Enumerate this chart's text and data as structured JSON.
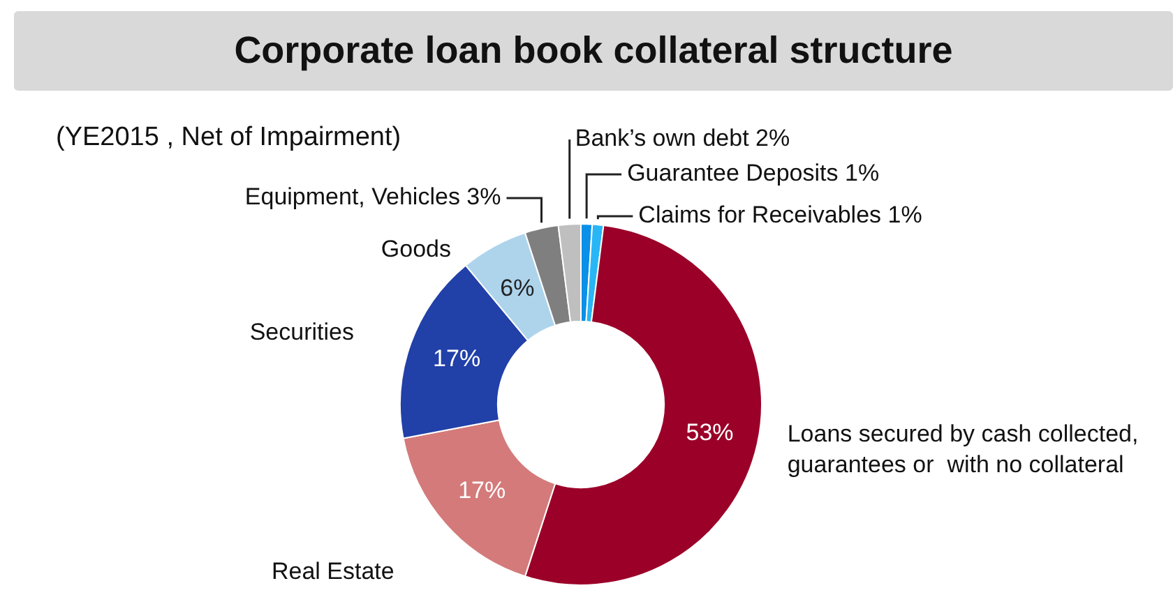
{
  "chart_data": {
    "type": "donut",
    "title": "Corporate loan book collateral structure",
    "subtitle": "(YE2015 , Net of Impairment)",
    "categories": [
      "Guarantee Deposits",
      "Claims for Receivables",
      "Loans secured by cash collected, guarantees or  with no collateral",
      "Real Estate",
      "Securities",
      "Goods",
      "Equipment, Vehicles",
      "Bank’s own debt"
    ],
    "values": [
      1,
      1,
      53,
      17,
      17,
      6,
      3,
      2
    ],
    "value_labels": [
      "1%",
      "1%",
      "53%",
      "17%",
      "17%",
      "6%",
      "3%",
      "2%"
    ],
    "colors": [
      "#0a90e8",
      "#29b6f6",
      "#9b0028",
      "#d47a7a",
      "#2140a8",
      "#aed4ec",
      "#7f7f7f",
      "#bfbfbf"
    ],
    "legend": false
  }
}
